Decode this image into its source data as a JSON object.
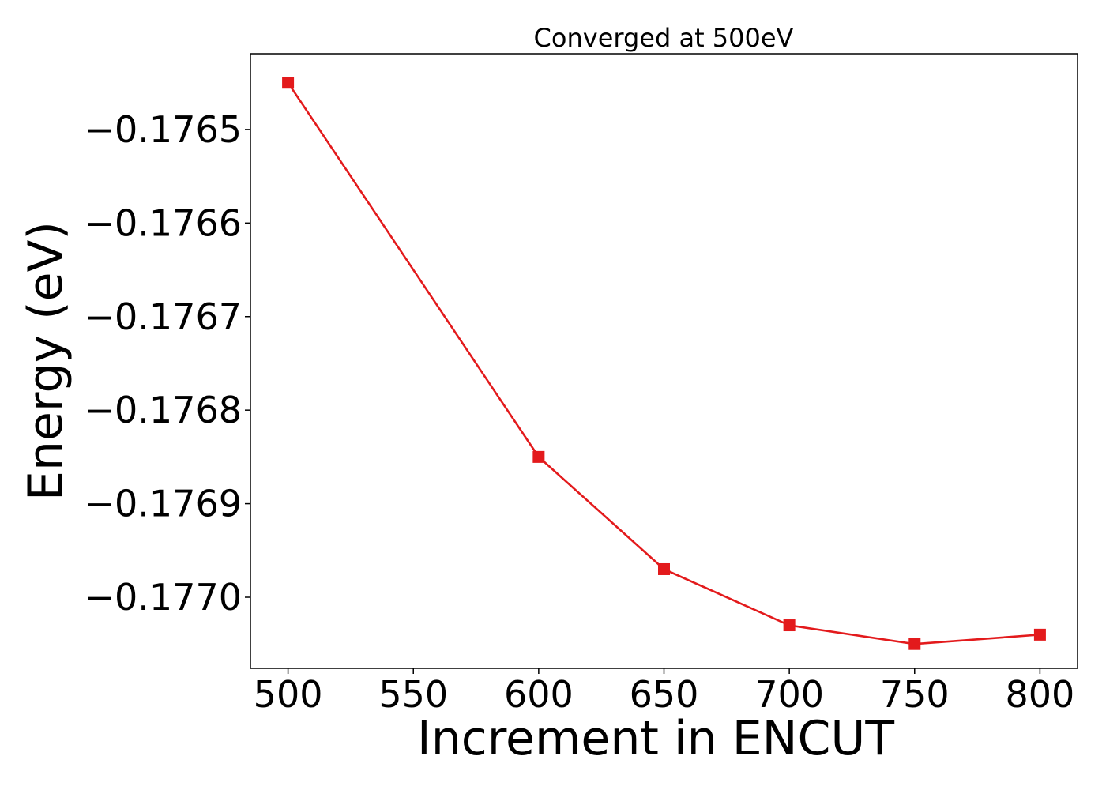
{
  "chart_data": {
    "type": "line",
    "title": "Converged at 500eV",
    "xlabel": "Increment in ENCUT",
    "ylabel": "Energy (eV)",
    "x": [
      500,
      600,
      650,
      700,
      750,
      800
    ],
    "series": [
      {
        "values": [
          -0.17645,
          -0.17685,
          -0.17697,
          -0.17703,
          -0.17705,
          -0.17704
        ],
        "color": "#e31a1c",
        "marker": "square"
      }
    ],
    "xlim": [
      485,
      815
    ],
    "ylim": [
      -0.177076,
      -0.176419
    ],
    "xticks": [
      500,
      550,
      600,
      650,
      700,
      750,
      800
    ],
    "xtick_labels": [
      "500",
      "550",
      "600",
      "650",
      "700",
      "750",
      "800"
    ],
    "yticks": [
      -0.1765,
      -0.1766,
      -0.1767,
      -0.1768,
      -0.1769,
      -0.177
    ],
    "ytick_labels": [
      "−0.1765",
      "−0.1766",
      "−0.1767",
      "−0.1768",
      "−0.1769",
      "−0.1770"
    ],
    "grid": false,
    "legend": "none"
  }
}
